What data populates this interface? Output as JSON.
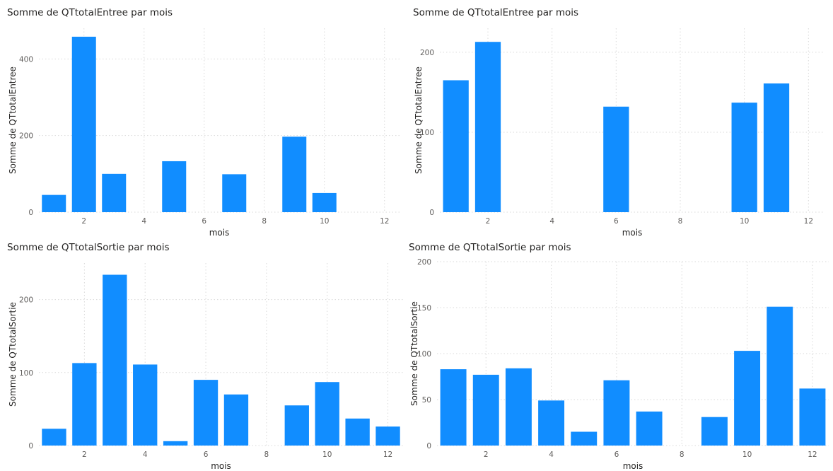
{
  "colors": {
    "bar": "#118dff"
  },
  "chart_data": [
    {
      "type": "bar",
      "title": "Somme de QTtotalEntree par mois",
      "xlabel": "mois",
      "ylabel": "Somme de QTtotalEntree",
      "x": [
        1,
        2,
        3,
        5,
        7,
        9,
        10
      ],
      "values": [
        45,
        458,
        100,
        133,
        99,
        197,
        50
      ],
      "xlim": [
        0.5,
        12.5
      ],
      "ylim": [
        0,
        480
      ],
      "xticks": [
        2,
        4,
        6,
        8,
        10,
        12
      ],
      "yticks": [
        0,
        200,
        400
      ],
      "grid": true
    },
    {
      "type": "bar",
      "title": "Somme de QTtotalEntree par mois",
      "xlabel": "mois",
      "ylabel": "Somme de QTtotalEntree",
      "x": [
        1,
        2,
        6,
        10,
        11
      ],
      "values": [
        165,
        213,
        132,
        137,
        161
      ],
      "xlim": [
        0.5,
        12.5
      ],
      "ylim": [
        0,
        230
      ],
      "xticks": [
        2,
        4,
        6,
        8,
        10,
        12
      ],
      "yticks": [
        0,
        100,
        200
      ],
      "grid": true
    },
    {
      "type": "bar",
      "title": "Somme de QTtotalSortie par mois",
      "xlabel": "mois",
      "ylabel": "Somme de QTtotalSortie",
      "x": [
        1,
        2,
        3,
        4,
        5,
        6,
        7,
        9,
        10,
        11,
        12
      ],
      "values": [
        23,
        113,
        234,
        111,
        6,
        90,
        70,
        55,
        87,
        37,
        26
      ],
      "xlim": [
        0.5,
        12.5
      ],
      "ylim": [
        0,
        250
      ],
      "xticks": [
        2,
        4,
        6,
        8,
        10,
        12
      ],
      "yticks": [
        0,
        100,
        200
      ],
      "grid": true
    },
    {
      "type": "bar",
      "title": "Somme de QTtotalSortie par mois",
      "xlabel": "mois",
      "ylabel": "Somme de QTtotalSortie",
      "x": [
        1,
        2,
        3,
        4,
        5,
        6,
        7,
        9,
        10,
        11,
        12
      ],
      "values": [
        83,
        77,
        84,
        49,
        15,
        71,
        37,
        31,
        103,
        151,
        62
      ],
      "xlim": [
        0.5,
        12.5
      ],
      "ylim": [
        0,
        200
      ],
      "xticks": [
        2,
        4,
        6,
        8,
        10,
        12
      ],
      "yticks": [
        0,
        50,
        100,
        150,
        200
      ],
      "grid": true
    }
  ]
}
